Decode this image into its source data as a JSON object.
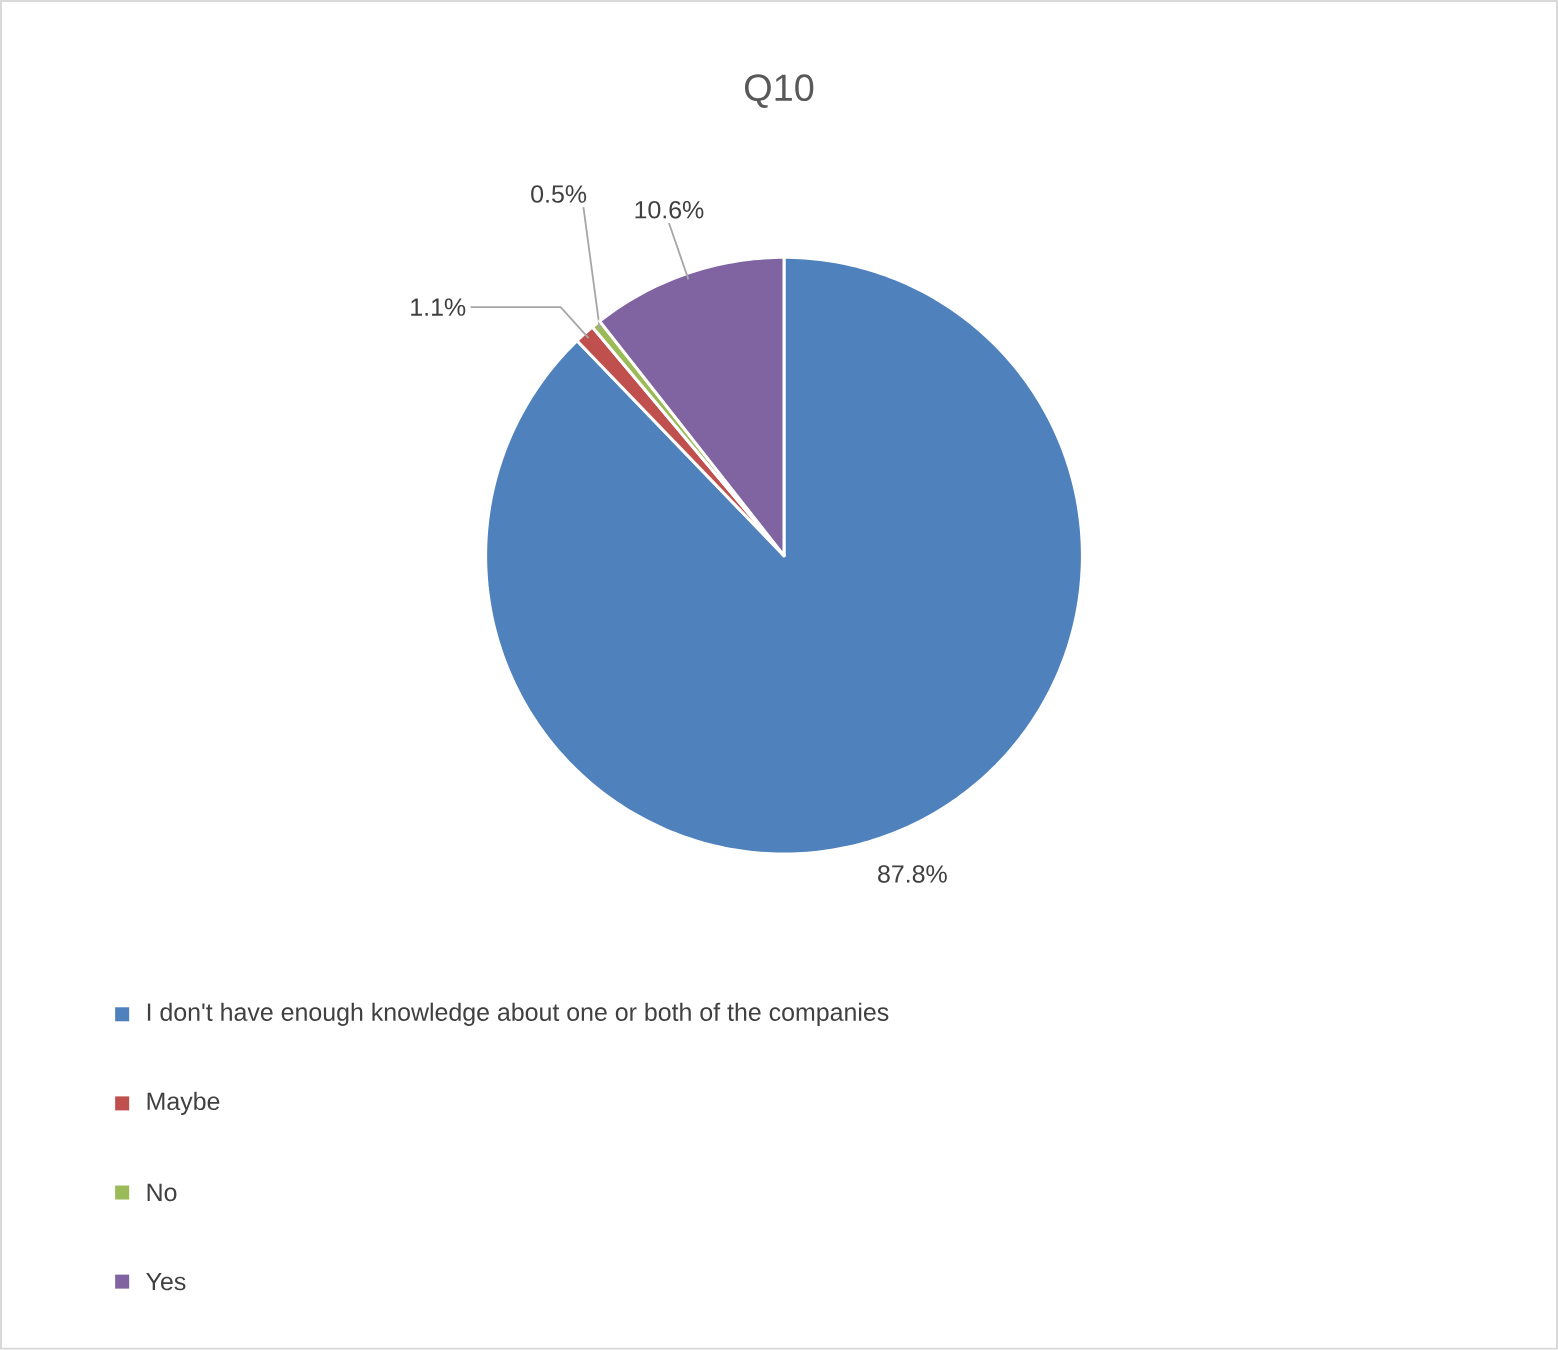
{
  "chart_data": {
    "type": "pie",
    "title": "Q10",
    "categories": [
      "I don't have enough knowledge about one or both of the companies",
      "Maybe",
      "No",
      "Yes"
    ],
    "values": [
      87.8,
      1.1,
      0.5,
      10.6
    ],
    "colors": [
      "#4f81bd",
      "#c0504d",
      "#9bbb59",
      "#8064a2"
    ],
    "value_labels": [
      "87.8%",
      "1.1%",
      "0.5%",
      "10.6%"
    ],
    "legend": "bottom"
  }
}
